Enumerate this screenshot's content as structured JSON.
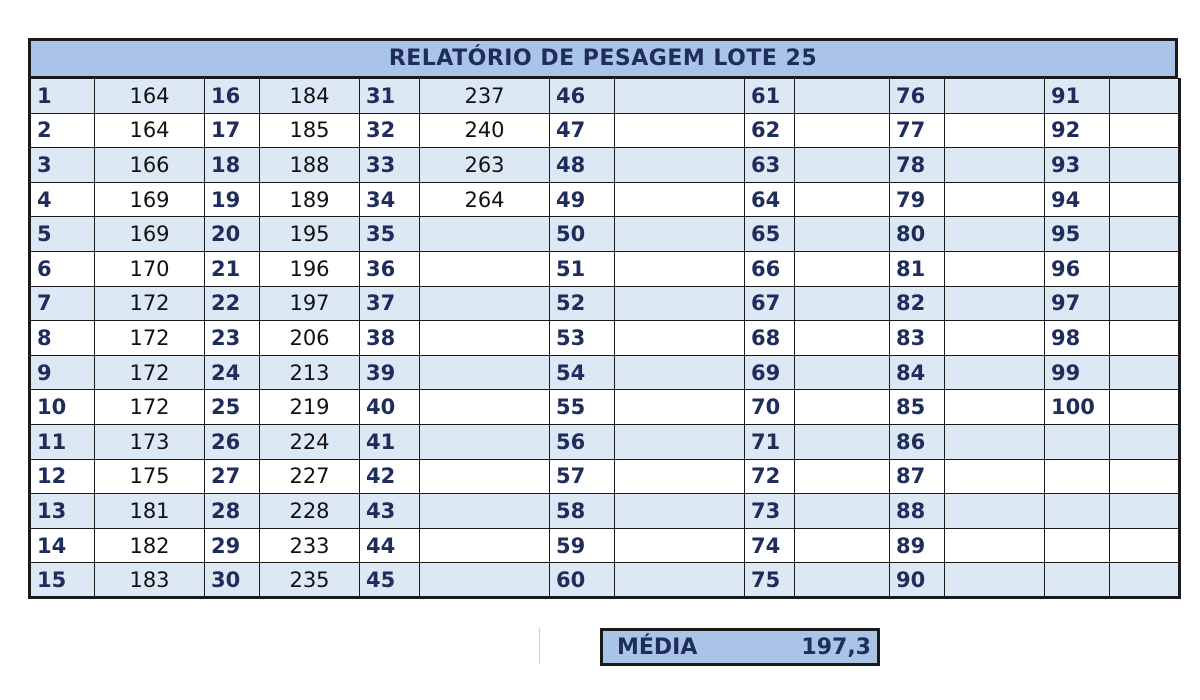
{
  "title": "RELATÓRIO DE PESAGEM LOTE 25",
  "colors": {
    "header_bg": "#a9c4e6",
    "header_text": "#1f2d5c",
    "row_shade": "#dde8f5",
    "border": "#1a1a1a"
  },
  "rows": [
    {
      "n": [
        "1",
        "16",
        "31",
        "46",
        "61",
        "76",
        "91"
      ],
      "v": [
        "164",
        "184",
        "237",
        "",
        "",
        "",
        ""
      ]
    },
    {
      "n": [
        "2",
        "17",
        "32",
        "47",
        "62",
        "77",
        "92"
      ],
      "v": [
        "164",
        "185",
        "240",
        "",
        "",
        "",
        ""
      ]
    },
    {
      "n": [
        "3",
        "18",
        "33",
        "48",
        "63",
        "78",
        "93"
      ],
      "v": [
        "166",
        "188",
        "263",
        "",
        "",
        "",
        ""
      ]
    },
    {
      "n": [
        "4",
        "19",
        "34",
        "49",
        "64",
        "79",
        "94"
      ],
      "v": [
        "169",
        "189",
        "264",
        "",
        "",
        "",
        ""
      ]
    },
    {
      "n": [
        "5",
        "20",
        "35",
        "50",
        "65",
        "80",
        "95"
      ],
      "v": [
        "169",
        "195",
        "",
        "",
        "",
        "",
        ""
      ]
    },
    {
      "n": [
        "6",
        "21",
        "36",
        "51",
        "66",
        "81",
        "96"
      ],
      "v": [
        "170",
        "196",
        "",
        "",
        "",
        "",
        ""
      ]
    },
    {
      "n": [
        "7",
        "22",
        "37",
        "52",
        "67",
        "82",
        "97"
      ],
      "v": [
        "172",
        "197",
        "",
        "",
        "",
        "",
        ""
      ]
    },
    {
      "n": [
        "8",
        "23",
        "38",
        "53",
        "68",
        "83",
        "98"
      ],
      "v": [
        "172",
        "206",
        "",
        "",
        "",
        "",
        ""
      ]
    },
    {
      "n": [
        "9",
        "24",
        "39",
        "54",
        "69",
        "84",
        "99"
      ],
      "v": [
        "172",
        "213",
        "",
        "",
        "",
        "",
        ""
      ]
    },
    {
      "n": [
        "10",
        "25",
        "40",
        "55",
        "70",
        "85",
        "100"
      ],
      "v": [
        "172",
        "219",
        "",
        "",
        "",
        "",
        ""
      ]
    },
    {
      "n": [
        "11",
        "26",
        "41",
        "56",
        "71",
        "86",
        ""
      ],
      "v": [
        "173",
        "224",
        "",
        "",
        "",
        "",
        ""
      ]
    },
    {
      "n": [
        "12",
        "27",
        "42",
        "57",
        "72",
        "87",
        ""
      ],
      "v": [
        "175",
        "227",
        "",
        "",
        "",
        "",
        ""
      ]
    },
    {
      "n": [
        "13",
        "28",
        "43",
        "58",
        "73",
        "88",
        ""
      ],
      "v": [
        "181",
        "228",
        "",
        "",
        "",
        "",
        ""
      ]
    },
    {
      "n": [
        "14",
        "29",
        "44",
        "59",
        "74",
        "89",
        ""
      ],
      "v": [
        "182",
        "233",
        "",
        "",
        "",
        "",
        ""
      ]
    },
    {
      "n": [
        "15",
        "30",
        "45",
        "60",
        "75",
        "90",
        ""
      ],
      "v": [
        "183",
        "235",
        "",
        "",
        "",
        "",
        ""
      ]
    }
  ],
  "average": {
    "label": "MÉDIA",
    "value": "197,3"
  }
}
